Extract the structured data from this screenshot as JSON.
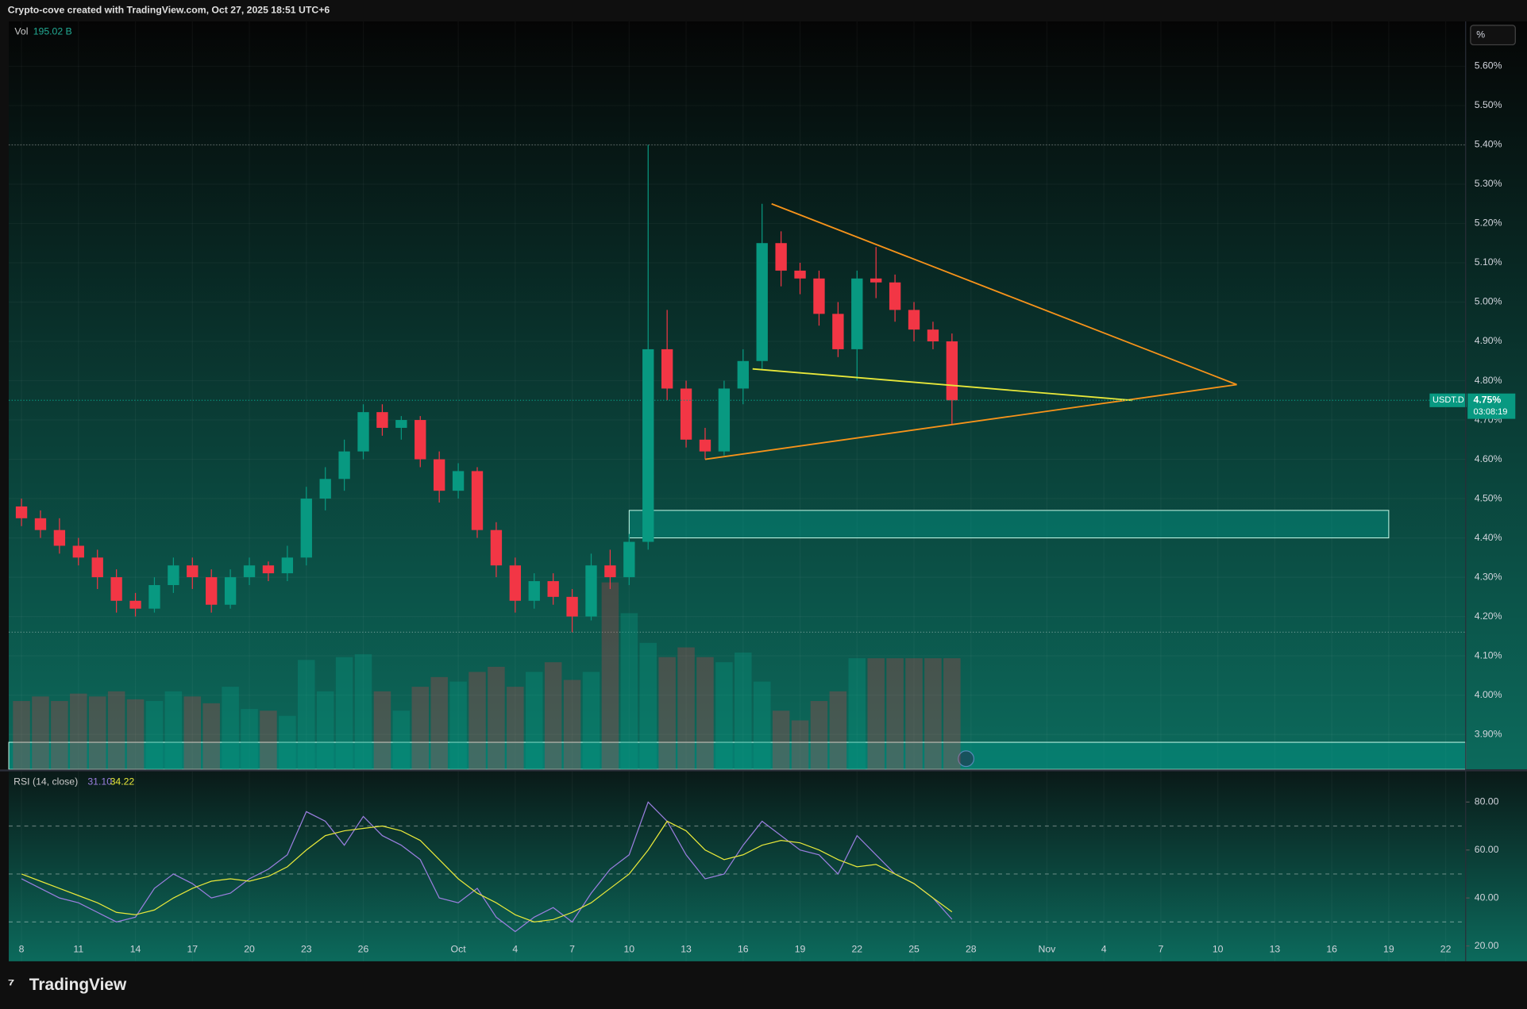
{
  "branding": "TradingView",
  "chart_data": [
    {
      "type": "candlestick",
      "header": "Crypto-cove created with TradingView.com, Oct 27, 2025 18:51 UTC+6",
      "scale_button": "%",
      "symbol": "USDT.D",
      "last_label": "4.75%",
      "countdown": "03:08:19",
      "color_up": "#089981",
      "color_down": "#f23645",
      "x": [
        0,
        1,
        2,
        3,
        4,
        5,
        6,
        7,
        8,
        9,
        10,
        11,
        12,
        13,
        14,
        15,
        16,
        17,
        18,
        19,
        20,
        21,
        22,
        23,
        24,
        25,
        26,
        27,
        28,
        29,
        30,
        31,
        32,
        33,
        34,
        35,
        36,
        37,
        38,
        39,
        40,
        41,
        42,
        43,
        44,
        45,
        46,
        47,
        48,
        49
      ],
      "ohlc": [
        [
          4.48,
          4.5,
          4.43,
          4.45
        ],
        [
          4.45,
          4.47,
          4.4,
          4.42
        ],
        [
          4.42,
          4.45,
          4.36,
          4.38
        ],
        [
          4.38,
          4.4,
          4.33,
          4.35
        ],
        [
          4.35,
          4.37,
          4.27,
          4.3
        ],
        [
          4.3,
          4.32,
          4.21,
          4.24
        ],
        [
          4.24,
          4.26,
          4.2,
          4.22
        ],
        [
          4.22,
          4.3,
          4.21,
          4.28
        ],
        [
          4.28,
          4.35,
          4.26,
          4.33
        ],
        [
          4.33,
          4.35,
          4.27,
          4.3
        ],
        [
          4.3,
          4.32,
          4.21,
          4.23
        ],
        [
          4.23,
          4.32,
          4.22,
          4.3
        ],
        [
          4.3,
          4.35,
          4.28,
          4.33
        ],
        [
          4.33,
          4.34,
          4.29,
          4.31
        ],
        [
          4.31,
          4.38,
          4.29,
          4.35
        ],
        [
          4.35,
          4.53,
          4.33,
          4.5
        ],
        [
          4.5,
          4.58,
          4.47,
          4.55
        ],
        [
          4.55,
          4.65,
          4.52,
          4.62
        ],
        [
          4.62,
          4.74,
          4.6,
          4.72
        ],
        [
          4.72,
          4.74,
          4.66,
          4.68
        ],
        [
          4.68,
          4.71,
          4.65,
          4.7
        ],
        [
          4.7,
          4.71,
          4.58,
          4.6
        ],
        [
          4.6,
          4.62,
          4.49,
          4.52
        ],
        [
          4.52,
          4.59,
          4.5,
          4.57
        ],
        [
          4.57,
          4.58,
          4.4,
          4.42
        ],
        [
          4.42,
          4.44,
          4.3,
          4.33
        ],
        [
          4.33,
          4.35,
          4.21,
          4.24
        ],
        [
          4.24,
          4.31,
          4.22,
          4.29
        ],
        [
          4.29,
          4.31,
          4.23,
          4.25
        ],
        [
          4.25,
          4.27,
          4.16,
          4.2
        ],
        [
          4.2,
          4.36,
          4.19,
          4.33
        ],
        [
          4.33,
          4.37,
          4.27,
          4.3
        ],
        [
          4.3,
          4.41,
          4.28,
          4.39
        ],
        [
          4.39,
          5.4,
          4.37,
          4.88
        ],
        [
          4.88,
          4.98,
          4.75,
          4.78
        ],
        [
          4.78,
          4.8,
          4.63,
          4.65
        ],
        [
          4.65,
          4.68,
          4.6,
          4.62
        ],
        [
          4.62,
          4.8,
          4.61,
          4.78
        ],
        [
          4.78,
          4.88,
          4.74,
          4.85
        ],
        [
          4.85,
          5.25,
          4.83,
          5.15
        ],
        [
          5.15,
          5.18,
          5.04,
          5.08
        ],
        [
          5.08,
          5.1,
          5.02,
          5.06
        ],
        [
          5.06,
          5.08,
          4.94,
          4.97
        ],
        [
          4.97,
          5.0,
          4.86,
          4.88
        ],
        [
          4.88,
          5.08,
          4.8,
          5.06
        ],
        [
          5.06,
          5.14,
          5.01,
          5.05
        ],
        [
          5.05,
          5.07,
          4.95,
          4.98
        ],
        [
          4.98,
          5.0,
          4.9,
          4.93
        ],
        [
          4.93,
          4.95,
          4.88,
          4.9
        ],
        [
          4.9,
          4.92,
          4.69,
          4.75
        ]
      ],
      "volume": {
        "name": "Vol",
        "value_label": "195.02 B",
        "values": [
          120,
          128,
          120,
          133,
          128,
          137,
          123,
          120,
          137,
          128,
          116,
          145,
          106,
          103,
          94,
          192,
          137,
          197,
          202,
          137,
          103,
          145,
          162,
          154,
          171,
          180,
          145,
          171,
          188,
          157,
          171,
          328,
          274,
          222,
          197,
          214,
          197,
          188,
          205,
          154,
          103,
          86,
          120,
          137,
          195,
          195,
          195,
          195,
          195,
          195.02
        ]
      },
      "xlim": [
        -0.67,
        76.05
      ],
      "ylim": [
        3.811,
        5.714
      ],
      "yticks": [
        {
          "value": 3.9,
          "label": "3.90%"
        },
        {
          "value": 4.0,
          "label": "4.00%"
        },
        {
          "value": 4.1,
          "label": "4.10%"
        },
        {
          "value": 4.2,
          "label": "4.20%"
        },
        {
          "value": 4.3,
          "label": "4.30%"
        },
        {
          "value": 4.4,
          "label": "4.40%"
        },
        {
          "value": 4.5,
          "label": "4.50%"
        },
        {
          "value": 4.6,
          "label": "4.60%"
        },
        {
          "value": 4.7,
          "label": "4.70%"
        },
        {
          "value": 4.8,
          "label": "4.80%"
        },
        {
          "value": 4.9,
          "label": "4.90%"
        },
        {
          "value": 5.0,
          "label": "5.00%"
        },
        {
          "value": 5.1,
          "label": "5.10%"
        },
        {
          "value": 5.2,
          "label": "5.20%"
        },
        {
          "value": 5.3,
          "label": "5.30%"
        },
        {
          "value": 5.4,
          "label": "5.40%"
        },
        {
          "value": 5.5,
          "label": "5.50%"
        },
        {
          "value": 5.6,
          "label": "5.60%"
        }
      ],
      "xticks": [
        {
          "value": 0,
          "label": "8"
        },
        {
          "value": 3,
          "label": "11"
        },
        {
          "value": 6,
          "label": "14"
        },
        {
          "value": 9,
          "label": "17"
        },
        {
          "value": 12,
          "label": "20"
        },
        {
          "value": 15,
          "label": "23"
        },
        {
          "value": 18,
          "label": "26"
        },
        {
          "value": 23,
          "label": "Oct"
        },
        {
          "value": 26,
          "label": "4"
        },
        {
          "value": 29,
          "label": "7"
        },
        {
          "value": 32,
          "label": "10"
        },
        {
          "value": 35,
          "label": "13"
        },
        {
          "value": 38,
          "label": "16"
        },
        {
          "value": 41,
          "label": "19"
        },
        {
          "value": 44,
          "label": "22"
        },
        {
          "value": 47,
          "label": "25"
        },
        {
          "value": 50,
          "label": "28"
        },
        {
          "value": 54,
          "label": "Nov"
        },
        {
          "value": 57,
          "label": "4"
        },
        {
          "value": 60,
          "label": "7"
        },
        {
          "value": 63,
          "label": "10"
        },
        {
          "value": 66,
          "label": "13"
        },
        {
          "value": 69,
          "label": "16"
        },
        {
          "value": 72,
          "label": "19"
        },
        {
          "value": 75,
          "label": "22"
        }
      ],
      "hlines": [
        5.4,
        4.16
      ],
      "zones": [
        {
          "x": [
            32,
            72
          ],
          "y": [
            4.4,
            4.47
          ]
        },
        {
          "x": [
            -0.67,
            76.05
          ],
          "y": [
            3.811,
            3.88
          ]
        }
      ],
      "drawings": [
        {
          "color": "#f7931a",
          "x": [
            39.5,
            64
          ],
          "y": [
            5.25,
            4.79
          ]
        },
        {
          "color": "#f7931a",
          "x": [
            36,
            64
          ],
          "y": [
            4.6,
            4.79
          ]
        },
        {
          "color": "#e8e83a",
          "x": [
            38.5,
            58.5
          ],
          "y": [
            4.83,
            4.75
          ]
        }
      ]
    },
    {
      "type": "line",
      "title": "RSI (14, close)",
      "x": [
        0,
        1,
        2,
        3,
        4,
        5,
        6,
        7,
        8,
        9,
        10,
        11,
        12,
        13,
        14,
        15,
        16,
        17,
        18,
        19,
        20,
        21,
        22,
        23,
        24,
        25,
        26,
        27,
        28,
        29,
        30,
        31,
        32,
        33,
        34,
        35,
        36,
        37,
        38,
        39,
        40,
        41,
        42,
        43,
        44,
        45,
        46,
        47,
        48,
        49
      ],
      "series": [
        {
          "color": "#9b7fe0",
          "last_label": "31.10",
          "values": [
            48,
            44,
            40,
            38,
            34,
            30,
            32,
            44,
            50,
            46,
            40,
            42,
            48,
            52,
            58,
            76,
            72,
            62,
            74,
            66,
            62,
            56,
            40,
            38,
            44,
            32,
            26,
            32,
            36,
            30,
            42,
            52,
            58,
            80,
            72,
            58,
            48,
            50,
            62,
            72,
            66,
            60,
            58,
            50,
            66,
            58,
            50,
            46,
            40,
            31.1
          ]
        },
        {
          "color": "#e8e83a",
          "last_label": "34.22",
          "values": [
            50,
            47,
            44,
            41,
            38,
            34,
            33,
            35,
            40,
            44,
            47,
            48,
            47,
            49,
            53,
            60,
            66,
            68,
            69,
            70,
            68,
            64,
            56,
            48,
            42,
            38,
            33,
            30,
            31,
            34,
            38,
            44,
            50,
            60,
            72,
            68,
            60,
            56,
            58,
            62,
            64,
            63,
            60,
            56,
            53,
            54,
            50,
            46,
            40,
            34.22
          ]
        }
      ],
      "ylim": [
        13.6,
        92.8
      ],
      "yticks": [
        {
          "value": 20,
          "label": "20.00"
        },
        {
          "value": 40,
          "label": "40.00"
        },
        {
          "value": 60,
          "label": "60.00"
        },
        {
          "value": 80,
          "label": "80.00"
        }
      ],
      "bands": [
        70,
        50,
        30
      ]
    }
  ]
}
